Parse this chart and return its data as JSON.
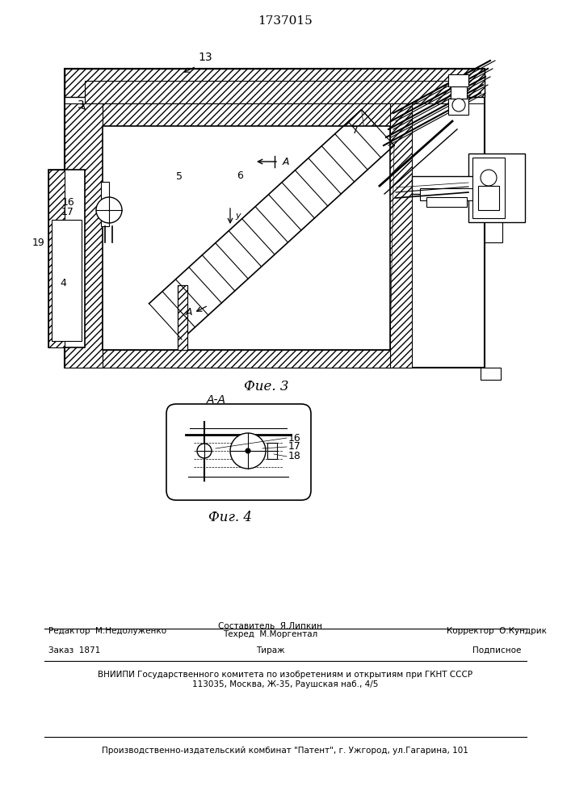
{
  "patent_number": "1737015",
  "fig3_caption": "Фие. 3",
  "fig4_caption": "Фиг. 4",
  "fig4_label": "А-А",
  "bg_color": "#ffffff",
  "line_color": "#000000",
  "footer_line1_left": "Редактор  М.Недолуженко",
  "footer_sestavitel": "Составитель  Я.Липкин",
  "footer_tekhred": "Техред  М.Моргентал",
  "footer_korrektor": "Корректор  О.Кундрик",
  "footer_zakaz": "Заказ  1871",
  "footer_tirazh": "Тираж",
  "footer_podpisnoe": "Подписное",
  "footer_vnipi": "ВНИИПИ Государственного комитета по изобретениям и открытиям при ГКНТ СССР",
  "footer_addr": "113035, Москва, Ж-35, Раушская наб., 4/5",
  "footer_patent": "Производственно-издательский комбинат \"Патент\", г. Ужгород, ул.Гагарина, 101"
}
